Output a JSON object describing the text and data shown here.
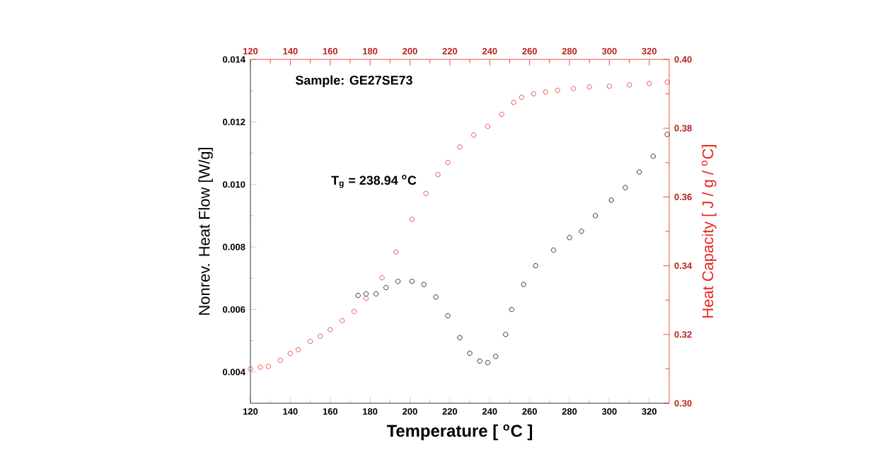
{
  "chart_data": {
    "type": "scatter",
    "xlabel": "Temperature [ $^{o}$C ]",
    "ylabel": "Nonrev. Heat Flow [W/g]",
    "y2label": "Heat Capacity [ J / g / $^{o}$C]",
    "annotations": [
      "Sample: GE27SE73",
      "T$_{g}$ = 238.94 $^{o}$C"
    ],
    "marker": "circle",
    "xlim": [
      120,
      330
    ],
    "xticks": [
      120,
      140,
      160,
      180,
      200,
      220,
      240,
      260,
      280,
      300,
      320
    ],
    "x2lim": [
      120,
      330
    ],
    "x2ticks": [
      120,
      140,
      160,
      180,
      200,
      220,
      240,
      260,
      280,
      300,
      320
    ],
    "ylim": [
      0.003,
      0.014
    ],
    "yticks": [
      0.004,
      0.006,
      0.008,
      {
        "value": 0.01,
        "label": "0.010"
      },
      0.012,
      0.014
    ],
    "y2lim": [
      0.3,
      0.4
    ],
    "y2ticks": [
      {
        "value": 0.3,
        "label": "0.30"
      },
      0.32,
      0.34,
      0.36,
      0.38,
      {
        "value": 0.4,
        "label": "0.40"
      }
    ],
    "series": [
      {
        "color": "#000000",
        "x": [
          174,
          178,
          183,
          188,
          194,
          201,
          207,
          213,
          219,
          225,
          230,
          235,
          239,
          243,
          248,
          251,
          257,
          263,
          272,
          280,
          286,
          293,
          301,
          308,
          315,
          322,
          329
        ],
        "values": [
          0.00645,
          0.0065,
          0.0065,
          0.0067,
          0.0069,
          0.0069,
          0.0068,
          0.0064,
          0.0058,
          0.0051,
          0.0046,
          0.00435,
          0.0043,
          0.0045,
          0.0052,
          0.006,
          0.0068,
          0.0074,
          0.0079,
          0.0083,
          0.0085,
          0.009,
          0.0095,
          0.0099,
          0.0104,
          0.0109,
          0.0116
        ]
      },
      {
        "color": "#e8251f",
        "axis": "y2",
        "x": [
          120,
          125,
          129,
          135,
          140,
          144,
          150,
          155,
          160,
          166,
          172,
          178,
          186,
          193,
          201,
          208,
          214,
          219,
          225,
          232,
          239,
          246,
          252,
          256,
          262,
          268,
          274,
          282,
          290,
          300,
          310,
          320,
          329
        ],
        "values": [
          0.31,
          0.3105,
          0.3107,
          0.3125,
          0.3145,
          0.3156,
          0.318,
          0.3195,
          0.3214,
          0.324,
          0.3267,
          0.3305,
          0.3365,
          0.344,
          0.3535,
          0.361,
          0.3665,
          0.37,
          0.3745,
          0.378,
          0.3805,
          0.384,
          0.3875,
          0.389,
          0.39,
          0.3905,
          0.391,
          0.3915,
          0.392,
          0.3922,
          0.3926,
          0.393,
          0.3934
        ]
      }
    ]
  }
}
